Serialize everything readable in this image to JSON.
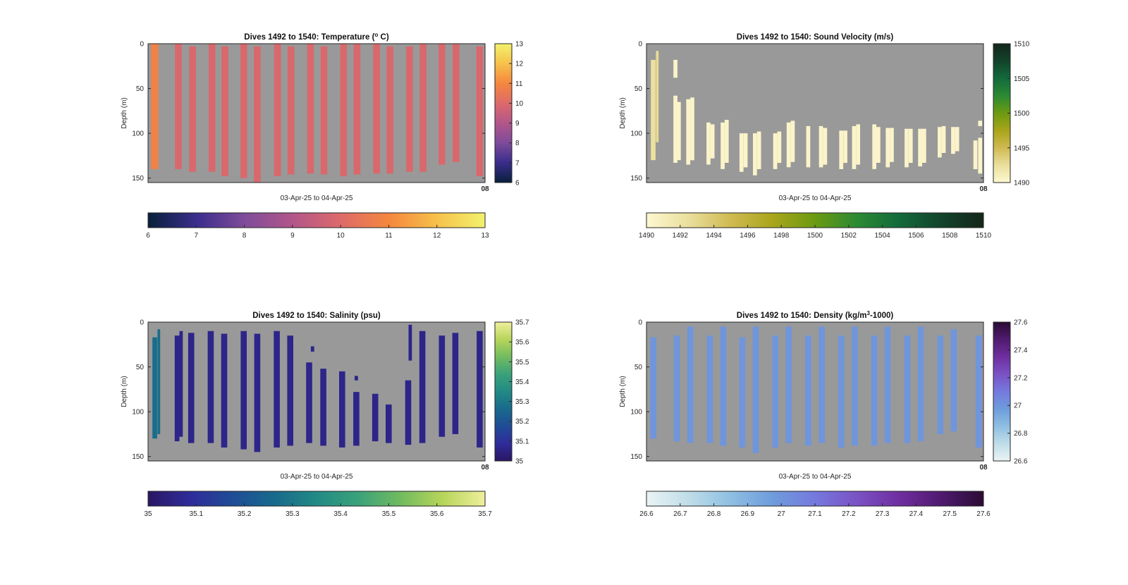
{
  "figure": {
    "background": "#ffffff",
    "panel_background": "#999999"
  },
  "chart_data": [
    {
      "type": "heatmap",
      "title": "Dives 1492 to 1540: Temperature (",
      "title_sup": "o",
      "title_end": " C)",
      "xlabel": "03-Apr-25 to 04-Apr-25",
      "ylabel": "Depth (m)",
      "ylim": [
        0,
        155
      ],
      "yticks": [
        "0",
        "50",
        "100",
        "150"
      ],
      "yticks_values": [
        0,
        50,
        100,
        150
      ],
      "xtick_label": "08",
      "x_range": [
        0,
        50
      ],
      "clim": [
        6,
        13
      ],
      "colormap": [
        "#08203a",
        "#3a2d8c",
        "#7e4b9a",
        "#b2568a",
        "#dd6a6a",
        "#f5873e",
        "#f7c14a",
        "#f2f26c"
      ],
      "colorbar_ticks": [
        "6",
        "7",
        "8",
        "9",
        "10",
        "11",
        "12",
        "13"
      ],
      "colorbar_tick_values": [
        6,
        7,
        8,
        9,
        10,
        11,
        12,
        13
      ],
      "h_colorbar_ticks": [
        "6",
        "7",
        "8",
        "9",
        "10",
        "11",
        "12",
        "13"
      ],
      "h_colorbar_tick_values": [
        6,
        7,
        8,
        9,
        10,
        11,
        12,
        13
      ],
      "profiles": [
        {
          "x": 1.0,
          "top": 0,
          "bottom": 140,
          "value": 10.8,
          "w": 1.1
        },
        {
          "x": 4.5,
          "top": 0,
          "bottom": 140,
          "value": 9.9,
          "w": 1.0
        },
        {
          "x": 6.6,
          "top": 3,
          "bottom": 143,
          "value": 9.9,
          "w": 1.0
        },
        {
          "x": 9.5,
          "top": 0,
          "bottom": 143,
          "value": 9.9,
          "w": 1.0
        },
        {
          "x": 11.4,
          "top": 3,
          "bottom": 148,
          "value": 9.9,
          "w": 1.0
        },
        {
          "x": 14.2,
          "top": 0,
          "bottom": 150,
          "value": 9.9,
          "w": 1.0
        },
        {
          "x": 16.2,
          "top": 3,
          "bottom": 155,
          "value": 9.9,
          "w": 1.0
        },
        {
          "x": 19.2,
          "top": 0,
          "bottom": 148,
          "value": 9.9,
          "w": 1.0
        },
        {
          "x": 21.2,
          "top": 3,
          "bottom": 146,
          "value": 9.9,
          "w": 1.0
        },
        {
          "x": 24.1,
          "top": 0,
          "bottom": 145,
          "value": 9.9,
          "w": 1.0
        },
        {
          "x": 26.1,
          "top": 3,
          "bottom": 146,
          "value": 9.9,
          "w": 1.0
        },
        {
          "x": 29.0,
          "top": 0,
          "bottom": 148,
          "value": 9.9,
          "w": 1.0
        },
        {
          "x": 31.0,
          "top": 0,
          "bottom": 146,
          "value": 9.9,
          "w": 1.0
        },
        {
          "x": 33.9,
          "top": 0,
          "bottom": 145,
          "value": 9.9,
          "w": 1.0
        },
        {
          "x": 35.9,
          "top": 3,
          "bottom": 145,
          "value": 9.9,
          "w": 1.0
        },
        {
          "x": 38.8,
          "top": 3,
          "bottom": 143,
          "value": 9.9,
          "w": 1.0
        },
        {
          "x": 40.8,
          "top": 0,
          "bottom": 143,
          "value": 9.9,
          "w": 1.0
        },
        {
          "x": 43.6,
          "top": 0,
          "bottom": 135,
          "value": 9.9,
          "w": 1.0
        },
        {
          "x": 45.7,
          "top": 0,
          "bottom": 132,
          "value": 9.9,
          "w": 1.0
        },
        {
          "x": 49.2,
          "top": 3,
          "bottom": 148,
          "value": 9.9,
          "w": 1.0
        }
      ]
    },
    {
      "type": "heatmap",
      "title": "Dives 1492 to 1540: Sound Velocity (m/s)",
      "title_sup": "",
      "title_end": "",
      "xlabel": "03-Apr-25 to 04-Apr-25",
      "ylabel": "Depth (m)",
      "ylim": [
        0,
        155
      ],
      "yticks": [
        "0",
        "50",
        "100",
        "150"
      ],
      "yticks_values": [
        0,
        50,
        100,
        150
      ],
      "xtick_label": "08",
      "x_range": [
        0,
        50
      ],
      "clim": [
        1490,
        1510
      ],
      "colormap": [
        "#fdf7d0",
        "#eadf9d",
        "#cfba52",
        "#a9a51a",
        "#6b9a12",
        "#2b8a33",
        "#136a3c",
        "#12432b",
        "#14261a"
      ],
      "colorbar_ticks": [
        "1490",
        "1495",
        "1500",
        "1505",
        "1510"
      ],
      "colorbar_tick_values": [
        1490,
        1495,
        1500,
        1505,
        1510
      ],
      "h_colorbar_ticks": [
        "1490",
        "1492",
        "1494",
        "1496",
        "1498",
        "1500",
        "1502",
        "1504",
        "1506",
        "1508",
        "1510"
      ],
      "h_colorbar_tick_values": [
        1490,
        1492,
        1494,
        1496,
        1498,
        1500,
        1502,
        1504,
        1506,
        1508,
        1510
      ],
      "profiles": [
        {
          "x": 1.0,
          "top": 18,
          "bottom": 130,
          "value": 1492.4,
          "w": 0.7
        },
        {
          "x": 1.6,
          "top": 8,
          "bottom": 110,
          "value": 1492.8,
          "w": 0.4
        },
        {
          "x": 4.3,
          "top": 18,
          "bottom": 38,
          "value": 1490.3,
          "w": 0.6
        },
        {
          "x": 4.3,
          "top": 58,
          "bottom": 133,
          "value": 1490.3,
          "w": 0.6
        },
        {
          "x": 4.8,
          "top": 65,
          "bottom": 130,
          "value": 1490.3,
          "w": 0.6
        },
        {
          "x": 6.2,
          "top": 62,
          "bottom": 135,
          "value": 1490.3,
          "w": 0.6
        },
        {
          "x": 6.8,
          "top": 60,
          "bottom": 130,
          "value": 1490.3,
          "w": 0.6
        },
        {
          "x": 9.2,
          "top": 88,
          "bottom": 135,
          "value": 1490.3,
          "w": 0.6
        },
        {
          "x": 9.8,
          "top": 90,
          "bottom": 128,
          "value": 1490.3,
          "w": 0.6
        },
        {
          "x": 11.3,
          "top": 88,
          "bottom": 140,
          "value": 1490.3,
          "w": 0.6
        },
        {
          "x": 11.9,
          "top": 85,
          "bottom": 133,
          "value": 1490.3,
          "w": 0.6
        },
        {
          "x": 14.1,
          "top": 100,
          "bottom": 143,
          "value": 1490.3,
          "w": 0.6
        },
        {
          "x": 14.7,
          "top": 100,
          "bottom": 138,
          "value": 1490.3,
          "w": 0.6
        },
        {
          "x": 16.1,
          "top": 100,
          "bottom": 147,
          "value": 1490.3,
          "w": 0.6
        },
        {
          "x": 16.7,
          "top": 98,
          "bottom": 140,
          "value": 1490.3,
          "w": 0.6
        },
        {
          "x": 19.1,
          "top": 100,
          "bottom": 140,
          "value": 1490.3,
          "w": 0.6
        },
        {
          "x": 19.7,
          "top": 98,
          "bottom": 133,
          "value": 1490.3,
          "w": 0.6
        },
        {
          "x": 21.1,
          "top": 88,
          "bottom": 138,
          "value": 1490.3,
          "w": 0.6
        },
        {
          "x": 21.7,
          "top": 86,
          "bottom": 132,
          "value": 1490.3,
          "w": 0.6
        },
        {
          "x": 24.0,
          "top": 92,
          "bottom": 138,
          "value": 1490.3,
          "w": 0.6
        },
        {
          "x": 25.9,
          "top": 92,
          "bottom": 138,
          "value": 1490.3,
          "w": 0.6
        },
        {
          "x": 26.5,
          "top": 94,
          "bottom": 135,
          "value": 1490.3,
          "w": 0.6
        },
        {
          "x": 28.9,
          "top": 97,
          "bottom": 140,
          "value": 1490.3,
          "w": 0.6
        },
        {
          "x": 29.5,
          "top": 97,
          "bottom": 133,
          "value": 1490.3,
          "w": 0.6
        },
        {
          "x": 30.8,
          "top": 92,
          "bottom": 140,
          "value": 1490.3,
          "w": 0.6
        },
        {
          "x": 31.4,
          "top": 90,
          "bottom": 135,
          "value": 1490.3,
          "w": 0.6
        },
        {
          "x": 33.8,
          "top": 90,
          "bottom": 140,
          "value": 1490.3,
          "w": 0.6
        },
        {
          "x": 34.4,
          "top": 93,
          "bottom": 133,
          "value": 1490.3,
          "w": 0.6
        },
        {
          "x": 35.8,
          "top": 94,
          "bottom": 138,
          "value": 1490.3,
          "w": 0.6
        },
        {
          "x": 36.4,
          "top": 94,
          "bottom": 132,
          "value": 1490.3,
          "w": 0.6
        },
        {
          "x": 38.6,
          "top": 95,
          "bottom": 138,
          "value": 1490.3,
          "w": 0.6
        },
        {
          "x": 39.2,
          "top": 95,
          "bottom": 133,
          "value": 1490.3,
          "w": 0.6
        },
        {
          "x": 40.6,
          "top": 95,
          "bottom": 137,
          "value": 1490.3,
          "w": 0.6
        },
        {
          "x": 41.2,
          "top": 95,
          "bottom": 133,
          "value": 1490.3,
          "w": 0.6
        },
        {
          "x": 43.5,
          "top": 93,
          "bottom": 127,
          "value": 1490.3,
          "w": 0.6
        },
        {
          "x": 44.1,
          "top": 92,
          "bottom": 122,
          "value": 1490.3,
          "w": 0.6
        },
        {
          "x": 45.5,
          "top": 93,
          "bottom": 123,
          "value": 1490.3,
          "w": 0.6
        },
        {
          "x": 46.1,
          "top": 93,
          "bottom": 120,
          "value": 1490.3,
          "w": 0.6
        },
        {
          "x": 48.8,
          "top": 108,
          "bottom": 140,
          "value": 1490.3,
          "w": 0.6
        },
        {
          "x": 49.5,
          "top": 105,
          "bottom": 145,
          "value": 1490.3,
          "w": 0.6
        },
        {
          "x": 49.5,
          "top": 86,
          "bottom": 92,
          "value": 1490.3,
          "w": 0.6
        }
      ]
    },
    {
      "type": "heatmap",
      "title": "Dives 1492 to 1540: Salinity (psu)",
      "title_sup": "",
      "title_end": "",
      "xlabel": "03-Apr-25 to 04-Apr-25",
      "ylabel": "Depth (m)",
      "ylim": [
        0,
        155
      ],
      "yticks": [
        "0",
        "50",
        "100",
        "150"
      ],
      "yticks_values": [
        0,
        50,
        100,
        150
      ],
      "xtick_label": "08",
      "x_range": [
        0,
        50
      ],
      "clim": [
        35,
        35.7
      ],
      "colormap": [
        "#2a1663",
        "#2f2c9a",
        "#1f4c96",
        "#186a8c",
        "#228a85",
        "#3aa27a",
        "#72bb5f",
        "#b7d55a",
        "#efef9c"
      ],
      "colorbar_ticks": [
        "35",
        "35.1",
        "35.2",
        "35.3",
        "35.4",
        "35.5",
        "35.6",
        "35.7"
      ],
      "colorbar_tick_values": [
        35,
        35.1,
        35.2,
        35.3,
        35.4,
        35.5,
        35.6,
        35.7
      ],
      "h_colorbar_ticks": [
        "35",
        "35.1",
        "35.2",
        "35.3",
        "35.4",
        "35.5",
        "35.6",
        "35.7"
      ],
      "h_colorbar_tick_values": [
        35,
        35.1,
        35.2,
        35.3,
        35.4,
        35.5,
        35.6,
        35.7
      ],
      "profiles": [
        {
          "x": 1.0,
          "top": 17,
          "bottom": 130,
          "value": 35.27,
          "w": 0.7
        },
        {
          "x": 1.6,
          "top": 8,
          "bottom": 125,
          "value": 35.27,
          "w": 0.4
        },
        {
          "x": 4.3,
          "top": 15,
          "bottom": 133,
          "value": 35.06,
          "w": 0.7
        },
        {
          "x": 4.9,
          "top": 10,
          "bottom": 128,
          "value": 35.06,
          "w": 0.5
        },
        {
          "x": 6.4,
          "top": 12,
          "bottom": 135,
          "value": 35.06,
          "w": 0.9
        },
        {
          "x": 9.3,
          "top": 10,
          "bottom": 135,
          "value": 35.06,
          "w": 0.9
        },
        {
          "x": 11.3,
          "top": 13,
          "bottom": 140,
          "value": 35.06,
          "w": 0.9
        },
        {
          "x": 14.2,
          "top": 10,
          "bottom": 142,
          "value": 35.06,
          "w": 0.9
        },
        {
          "x": 16.2,
          "top": 13,
          "bottom": 145,
          "value": 35.06,
          "w": 0.9
        },
        {
          "x": 19.1,
          "top": 10,
          "bottom": 140,
          "value": 35.06,
          "w": 0.9
        },
        {
          "x": 21.1,
          "top": 15,
          "bottom": 138,
          "value": 35.06,
          "w": 0.9
        },
        {
          "x": 23.9,
          "top": 45,
          "bottom": 135,
          "value": 35.06,
          "w": 0.9
        },
        {
          "x": 24.4,
          "top": 27,
          "bottom": 33,
          "value": 35.06,
          "w": 0.5
        },
        {
          "x": 26.0,
          "top": 52,
          "bottom": 138,
          "value": 35.06,
          "w": 0.9
        },
        {
          "x": 28.8,
          "top": 55,
          "bottom": 140,
          "value": 35.06,
          "w": 0.9
        },
        {
          "x": 30.9,
          "top": 78,
          "bottom": 138,
          "value": 35.06,
          "w": 0.9
        },
        {
          "x": 30.9,
          "top": 60,
          "bottom": 65,
          "value": 35.06,
          "w": 0.5
        },
        {
          "x": 33.7,
          "top": 80,
          "bottom": 133,
          "value": 35.06,
          "w": 0.9
        },
        {
          "x": 35.7,
          "top": 92,
          "bottom": 135,
          "value": 35.06,
          "w": 0.9
        },
        {
          "x": 38.6,
          "top": 65,
          "bottom": 137,
          "value": 35.06,
          "w": 0.9
        },
        {
          "x": 38.9,
          "top": 3,
          "bottom": 43,
          "value": 35.06,
          "w": 0.5
        },
        {
          "x": 40.7,
          "top": 10,
          "bottom": 135,
          "value": 35.06,
          "w": 0.9
        },
        {
          "x": 43.6,
          "top": 15,
          "bottom": 128,
          "value": 35.06,
          "w": 0.9
        },
        {
          "x": 45.6,
          "top": 12,
          "bottom": 125,
          "value": 35.06,
          "w": 0.9
        },
        {
          "x": 49.2,
          "top": 10,
          "bottom": 140,
          "value": 35.06,
          "w": 0.9
        }
      ]
    },
    {
      "type": "heatmap",
      "title": "Dives 1492 to 1540: Density (kg/m",
      "title_sup": "3",
      "title_end": "-1000)",
      "xlabel": "03-Apr-25 to 04-Apr-25",
      "ylabel": "Depth (m)",
      "ylim": [
        0,
        155
      ],
      "yticks": [
        "0",
        "50",
        "100",
        "150"
      ],
      "yticks_values": [
        0,
        50,
        100,
        150
      ],
      "xtick_label": "08",
      "x_range": [
        0,
        50
      ],
      "clim": [
        26.6,
        27.6
      ],
      "colormap": [
        "#eaf3f5",
        "#bfdde8",
        "#8ebfe2",
        "#6e9cdc",
        "#7579de",
        "#7a52c4",
        "#6f2ea0",
        "#501a6f",
        "#2a0c33"
      ],
      "colorbar_ticks": [
        "26.6",
        "26.8",
        "27",
        "27.2",
        "27.4",
        "27.6"
      ],
      "colorbar_tick_values": [
        26.6,
        26.8,
        27,
        27.2,
        27.4,
        27.6
      ],
      "h_colorbar_ticks": [
        "26.6",
        "26.7",
        "26.8",
        "26.9",
        "27",
        "27.1",
        "27.2",
        "27.3",
        "27.4",
        "27.5",
        "27.6"
      ],
      "h_colorbar_tick_values": [
        26.6,
        26.7,
        26.8,
        26.9,
        27,
        27.1,
        27.2,
        27.3,
        27.4,
        27.5,
        27.6
      ],
      "profiles": [
        {
          "x": 1.0,
          "top": 17,
          "bottom": 130,
          "value": 27.0,
          "w": 0.9
        },
        {
          "x": 4.5,
          "top": 15,
          "bottom": 133,
          "value": 27.0,
          "w": 0.9
        },
        {
          "x": 6.5,
          "top": 5,
          "bottom": 135,
          "value": 27.0,
          "w": 0.9
        },
        {
          "x": 9.4,
          "top": 15,
          "bottom": 135,
          "value": 27.0,
          "w": 0.9
        },
        {
          "x": 11.4,
          "top": 5,
          "bottom": 138,
          "value": 27.0,
          "w": 0.9
        },
        {
          "x": 14.2,
          "top": 17,
          "bottom": 140,
          "value": 27.0,
          "w": 0.9
        },
        {
          "x": 16.2,
          "top": 5,
          "bottom": 146,
          "value": 27.0,
          "w": 0.9
        },
        {
          "x": 19.1,
          "top": 15,
          "bottom": 140,
          "value": 27.0,
          "w": 0.9
        },
        {
          "x": 21.1,
          "top": 5,
          "bottom": 135,
          "value": 27.0,
          "w": 0.9
        },
        {
          "x": 24.0,
          "top": 15,
          "bottom": 138,
          "value": 27.0,
          "w": 0.9
        },
        {
          "x": 26.0,
          "top": 5,
          "bottom": 135,
          "value": 27.0,
          "w": 0.9
        },
        {
          "x": 28.9,
          "top": 15,
          "bottom": 140,
          "value": 27.0,
          "w": 0.9
        },
        {
          "x": 30.9,
          "top": 5,
          "bottom": 138,
          "value": 27.0,
          "w": 0.9
        },
        {
          "x": 33.8,
          "top": 15,
          "bottom": 138,
          "value": 27.0,
          "w": 0.9
        },
        {
          "x": 35.8,
          "top": 5,
          "bottom": 135,
          "value": 27.0,
          "w": 0.9
        },
        {
          "x": 38.7,
          "top": 15,
          "bottom": 135,
          "value": 27.0,
          "w": 0.9
        },
        {
          "x": 40.7,
          "top": 5,
          "bottom": 133,
          "value": 27.0,
          "w": 0.9
        },
        {
          "x": 43.6,
          "top": 15,
          "bottom": 125,
          "value": 27.0,
          "w": 0.9
        },
        {
          "x": 45.6,
          "top": 8,
          "bottom": 122,
          "value": 27.0,
          "w": 0.9
        },
        {
          "x": 49.3,
          "top": 15,
          "bottom": 140,
          "value": 27.0,
          "w": 0.9
        }
      ]
    }
  ]
}
